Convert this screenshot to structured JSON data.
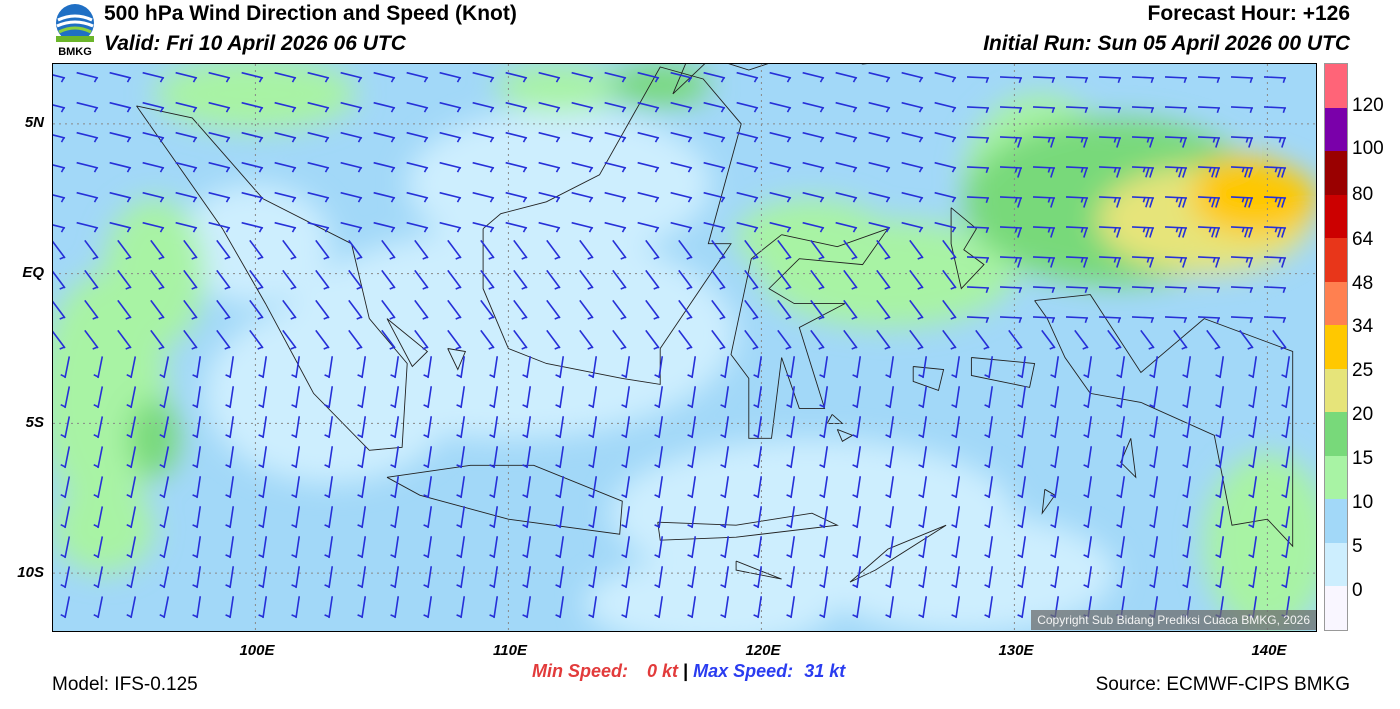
{
  "header": {
    "title": "500 hPa Wind Direction and Speed (Knot)",
    "valid": "Valid: Fri 10 April 2026 06 UTC",
    "forecast_hour": "Forecast Hour: +126",
    "initial_run": "Initial Run: Sun 05 April 2026 00 UTC",
    "logo_text": "BMKG"
  },
  "map": {
    "lat_labels": [
      "5N",
      "EQ",
      "5S",
      "10S"
    ],
    "lon_labels": [
      "100E",
      "110E",
      "120E",
      "130E",
      "140E"
    ],
    "extent": {
      "lon_min": 92,
      "lon_max": 142,
      "lat_min": -12,
      "lat_max": 7
    },
    "copyright": "Copyright Sub Bidang Prediksi Cuaca BMKG, 2026",
    "barb_color": "#2630d8"
  },
  "legend": {
    "labels": [
      "120",
      "100",
      "80",
      "64",
      "48",
      "34",
      "25",
      "20",
      "15",
      "10",
      "5",
      "0"
    ],
    "colors": [
      "#f9f6ff",
      "#cdeefe",
      "#a2d8f8",
      "#a8f3a4",
      "#78d97a",
      "#e6e47a",
      "#ffc800",
      "#ff8050",
      "#e8361a",
      "#cc0000",
      "#9a0000",
      "#7a00aa",
      "#ff6478"
    ]
  },
  "footer": {
    "model": "Model: IFS-0.125",
    "source": "Source: ECMWF-CIPS BMKG",
    "min_label": "Min Speed:",
    "min_value": "0 kt",
    "separator": "|",
    "max_label": "Max Speed:",
    "max_value": "31 kt"
  }
}
